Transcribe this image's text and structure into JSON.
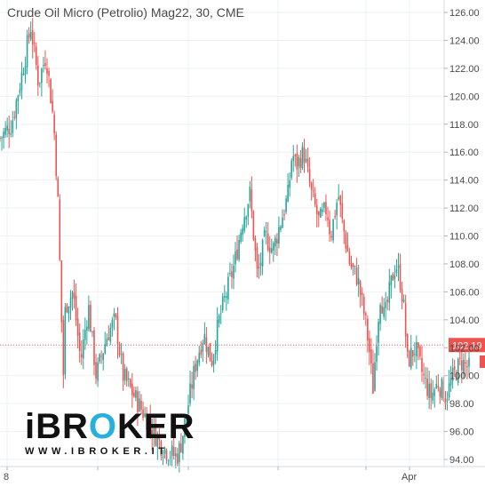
{
  "chart_data": {
    "type": "candlestick",
    "title": "Crude Oil Micro (Petrolio) Mag22, 30, CME",
    "ylim": [
      93.5,
      127
    ],
    "y_ticks": [
      94,
      96,
      98,
      100,
      102,
      104,
      106,
      108,
      110,
      112,
      114,
      116,
      118,
      120,
      122,
      124,
      126
    ],
    "y_tick_labels": [
      "94.00",
      "96.00",
      "98.00",
      "100.00",
      "102.00",
      "104.00",
      "106.00",
      "108.00",
      "110.00",
      "112.00",
      "114.00",
      "116.00",
      "118.00",
      "120.00",
      "122.00",
      "124.00",
      "126.00"
    ],
    "x_tick_labels": [
      "8",
      "Apr"
    ],
    "current_price": 102.19,
    "current_price_label": "102.19",
    "grid": true,
    "colors": {
      "up": "#26a69a",
      "down": "#ef5350",
      "price_line": "#ef5350",
      "grid": "#eef0f3"
    },
    "price_path": [
      [
        0,
        117
      ],
      [
        3,
        118
      ],
      [
        6,
        122
      ],
      [
        8,
        125
      ],
      [
        10,
        121
      ],
      [
        12,
        123
      ],
      [
        14,
        118
      ],
      [
        15,
        113
      ],
      [
        16,
        104
      ],
      [
        16.5,
        100
      ],
      [
        17,
        105
      ],
      [
        19,
        106
      ],
      [
        21,
        101
      ],
      [
        23,
        105
      ],
      [
        25,
        100
      ],
      [
        28,
        103
      ],
      [
        30,
        104
      ],
      [
        32,
        100
      ],
      [
        34,
        99
      ],
      [
        36,
        98
      ],
      [
        38,
        97
      ],
      [
        40,
        96
      ],
      [
        42,
        95
      ],
      [
        44,
        94.5
      ],
      [
        46,
        94.2
      ],
      [
        47,
        95
      ],
      [
        49,
        98
      ],
      [
        51,
        101
      ],
      [
        53,
        103
      ],
      [
        55,
        101
      ],
      [
        57,
        104
      ],
      [
        59,
        106
      ],
      [
        61,
        108
      ],
      [
        63,
        111
      ],
      [
        65,
        113
      ],
      [
        66,
        110
      ],
      [
        67,
        107
      ],
      [
        69,
        110
      ],
      [
        71,
        109
      ],
      [
        73,
        111
      ],
      [
        75,
        113
      ],
      [
        76,
        116
      ],
      [
        77,
        115
      ],
      [
        79,
        116
      ],
      [
        81,
        113
      ],
      [
        83,
        111
      ],
      [
        85,
        112
      ],
      [
        86,
        110
      ],
      [
        88,
        113
      ],
      [
        89,
        111
      ],
      [
        91,
        108
      ],
      [
        93,
        107
      ],
      [
        95,
        104
      ],
      [
        96,
        102
      ],
      [
        97,
        99
      ],
      [
        98,
        103
      ],
      [
        99,
        106
      ],
      [
        100,
        104
      ],
      [
        102,
        107
      ],
      [
        103,
        108
      ],
      [
        104,
        107
      ],
      [
        105,
        105
      ],
      [
        106,
        101
      ],
      [
        108,
        102
      ],
      [
        110,
        100
      ],
      [
        112,
        98.5
      ],
      [
        114,
        99.5
      ],
      [
        116,
        98.5
      ],
      [
        118,
        100
      ],
      [
        120,
        101
      ],
      [
        122,
        100.5
      ]
    ]
  },
  "logo": {
    "main_pre": "iBR",
    "main_o": "O",
    "main_post": "KER",
    "sub": "WWW.IBROKER.IT"
  }
}
